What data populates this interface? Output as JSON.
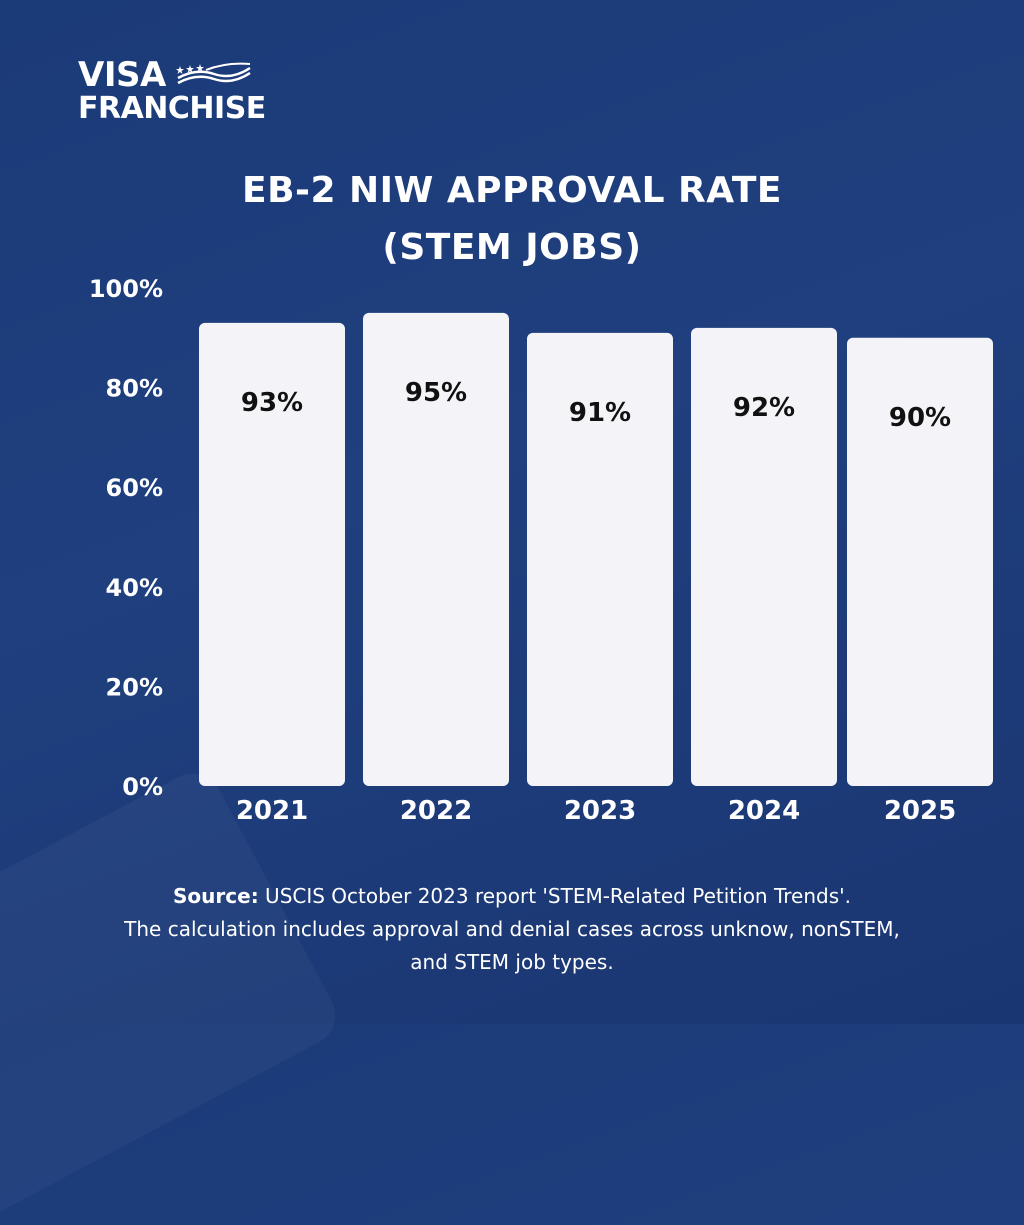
{
  "brand": {
    "line1": "VISA",
    "line2": "FRANCHISE"
  },
  "colors": {
    "background": "#1d3c7b",
    "bar": "#f4f3f8",
    "bar_label": "#111111",
    "axis_text": "#ffffff"
  },
  "chart_data": {
    "type": "bar",
    "title_line1": "EB-2 NIW APPROVAL RATE",
    "title_line2": "(STEM JOBS)",
    "categories": [
      "2021",
      "2022",
      "2023",
      "2024",
      "2025"
    ],
    "values": [
      93,
      95,
      91,
      92,
      90
    ],
    "value_labels": [
      "93%",
      "95%",
      "91%",
      "92%",
      "90%"
    ],
    "ylim": [
      0,
      100
    ],
    "yticks": [
      0,
      20,
      40,
      60,
      80,
      100
    ],
    "ytick_labels": [
      "0%",
      "20%",
      "40%",
      "60%",
      "80%",
      "100%"
    ],
    "xlabel": "",
    "ylabel": ""
  },
  "footer": {
    "source_label": "Source:",
    "source_text": " USCIS October 2023 report 'STEM-Related Petition Trends'.",
    "line2": "The calculation includes approval and denial cases across unknow, nonSTEM,",
    "line3": "and STEM job types."
  }
}
